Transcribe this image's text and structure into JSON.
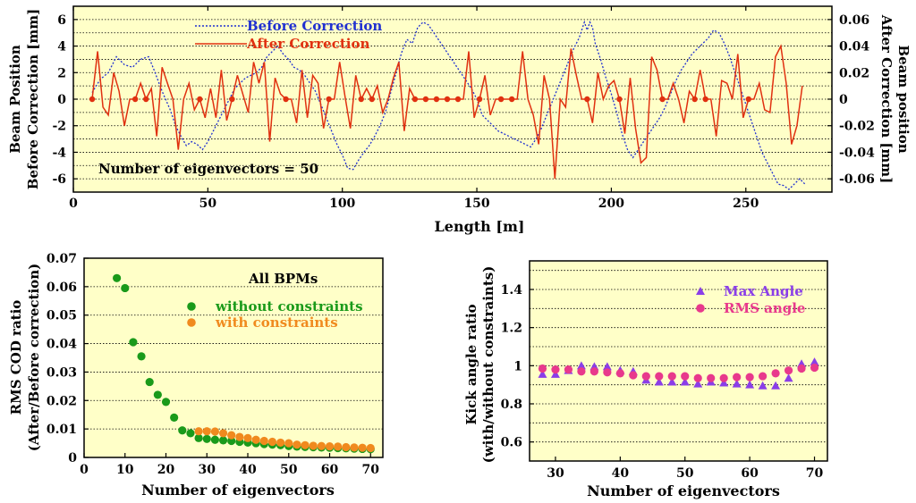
{
  "chart_data": [
    {
      "type": "line",
      "xlabel": "Length [m]",
      "ylabel_left": [
        "Beam Position",
        "Before Correction [mm]"
      ],
      "ylabel_right": [
        "Beam position",
        "After Correction [mm]"
      ],
      "xlim": [
        0,
        282
      ],
      "ylim_left": [
        -7,
        7
      ],
      "ylim_right": [
        -0.07,
        0.07
      ],
      "x_ticks": [
        0,
        50,
        100,
        150,
        200,
        250
      ],
      "y_left_ticks": [
        6,
        4,
        2,
        0,
        -2,
        -4,
        -6
      ],
      "y_right_ticks": [
        0.06,
        0.04,
        0.02,
        0,
        -0.02,
        -0.04,
        -0.06
      ],
      "y_right_tick_labels": [
        "0.06",
        "0.04",
        "0.02",
        "0",
        "-0.02",
        "-0.04",
        "-0.06"
      ],
      "grid": "horizontal dotted",
      "legend_placement": "top-left",
      "annotation": "Number of eigenvectors = 50",
      "series": [
        {
          "name": "Before Correction",
          "axis": "left",
          "style": "dashed",
          "color": "#2030d0",
          "x": [
            7,
            10,
            13,
            16,
            19,
            22,
            25,
            28,
            30,
            33,
            36,
            38,
            40,
            42,
            44,
            46,
            48,
            50,
            52,
            55,
            58,
            60,
            62,
            64,
            66,
            68,
            70,
            72,
            74,
            76,
            78,
            80,
            82,
            84,
            86,
            88,
            90,
            92,
            94,
            96,
            98,
            100,
            102,
            104,
            106,
            108,
            110,
            112,
            114,
            116,
            118,
            120,
            122,
            124,
            126,
            128,
            130,
            132,
            134,
            136,
            138,
            140,
            142,
            144,
            146,
            148,
            150,
            152,
            154,
            156,
            158,
            160,
            162,
            164,
            166,
            168,
            170,
            172,
            174,
            176,
            178,
            180,
            182,
            184,
            186,
            188,
            190,
            191,
            192,
            193,
            194,
            196,
            198,
            200,
            202,
            204,
            206,
            208,
            210,
            212,
            214,
            216,
            218,
            220,
            222,
            224,
            226,
            228,
            230,
            232,
            234,
            236,
            238,
            240,
            242,
            244,
            246,
            248,
            250,
            252,
            254,
            256,
            258,
            260,
            262,
            264,
            266,
            268,
            270,
            272
          ],
          "values": [
            0.5,
            1.5,
            2.0,
            3.2,
            2.6,
            2.4,
            3.0,
            3.2,
            2.2,
            0.6,
            -0.8,
            -2.0,
            -2.8,
            -3.5,
            -3.2,
            -3.4,
            -3.8,
            -3.2,
            -2.4,
            -1.2,
            0.0,
            0.8,
            1.2,
            1.6,
            1.8,
            2.0,
            2.4,
            3.2,
            3.6,
            4.0,
            3.4,
            3.0,
            2.4,
            2.2,
            1.8,
            1.2,
            0.6,
            -0.4,
            -1.4,
            -2.4,
            -3.4,
            -4.2,
            -5.2,
            -5.3,
            -4.6,
            -4.0,
            -3.5,
            -2.8,
            -2.0,
            -1.0,
            0.5,
            2.0,
            3.5,
            4.5,
            4.2,
            5.4,
            5.8,
            5.6,
            5.0,
            4.4,
            3.8,
            3.2,
            2.6,
            2.0,
            1.4,
            0.8,
            0.0,
            -1.2,
            -1.6,
            -2.0,
            -2.4,
            -2.6,
            -2.8,
            -3.0,
            -3.2,
            -3.4,
            -3.6,
            -3.0,
            -2.2,
            -1.2,
            -0.2,
            0.8,
            1.8,
            2.8,
            3.8,
            4.6,
            5.8,
            5.2,
            5.8,
            5.4,
            4.2,
            3.0,
            1.6,
            0.4,
            -1.0,
            -2.6,
            -3.8,
            -4.4,
            -3.8,
            -3.2,
            -2.6,
            -2.0,
            -1.4,
            -0.6,
            0.4,
            1.4,
            2.2,
            2.8,
            3.4,
            3.8,
            4.2,
            4.6,
            5.2,
            5.0,
            4.2,
            3.2,
            2.0,
            0.8,
            -0.4,
            -1.6,
            -2.8,
            -4.0,
            -4.8,
            -5.6,
            -6.4,
            -6.5,
            -6.8,
            -6.4,
            -6.0,
            -6.4
          ]
        },
        {
          "name": "After Correction",
          "axis": "right",
          "style": "solid",
          "color": "#e03010",
          "x": [
            7,
            9,
            11,
            13,
            15,
            17,
            19,
            21,
            23,
            25,
            27,
            29,
            31,
            33,
            35,
            37,
            39,
            41,
            43,
            45,
            47,
            49,
            51,
            53,
            55,
            57,
            59,
            61,
            63,
            65,
            67,
            69,
            71,
            73,
            75,
            77,
            79,
            81,
            83,
            85,
            87,
            89,
            91,
            93,
            95,
            97,
            99,
            101,
            103,
            105,
            107,
            109,
            111,
            113,
            115,
            117,
            119,
            121,
            123,
            125,
            127,
            129,
            131,
            133,
            135,
            137,
            139,
            141,
            143,
            145,
            147,
            149,
            151,
            153,
            155,
            157,
            159,
            161,
            163,
            165,
            167,
            169,
            171,
            173,
            175,
            177,
            179,
            181,
            183,
            185,
            187,
            189,
            191,
            193,
            195,
            197,
            199,
            201,
            203,
            205,
            207,
            209,
            211,
            213,
            215,
            217,
            219,
            221,
            223,
            225,
            227,
            229,
            231,
            233,
            235,
            237,
            239,
            241,
            243,
            245,
            247,
            249,
            251,
            253,
            255,
            257,
            259,
            261,
            263,
            265,
            267,
            269,
            271
          ],
          "values": [
            0,
            0.036,
            -0.006,
            -0.012,
            0.02,
            0.006,
            -0.02,
            0,
            0,
            0.012,
            0,
            0.008,
            -0.028,
            0.024,
            0.012,
            0,
            -0.038,
            0,
            0.012,
            -0.008,
            0,
            -0.014,
            0.008,
            -0.014,
            0.022,
            -0.016,
            0,
            0.018,
            0.004,
            -0.01,
            0.028,
            0.012,
            0.028,
            -0.032,
            0.016,
            0.004,
            0,
            0,
            -0.018,
            0.022,
            -0.014,
            0.018,
            0.012,
            -0.022,
            0,
            0,
            0.028,
            0.002,
            -0.022,
            0.018,
            0,
            0.008,
            0,
            0.01,
            -0.01,
            0,
            0.016,
            0.028,
            -0.024,
            0.008,
            0,
            0,
            0,
            0,
            0,
            0,
            0,
            0,
            0,
            0,
            0.036,
            -0.014,
            0,
            0.018,
            -0.012,
            0,
            0,
            0,
            0,
            0,
            0.036,
            0,
            -0.012,
            -0.034,
            0.018,
            0,
            -0.06,
            0,
            -0.006,
            0.038,
            0.018,
            0,
            0,
            -0.018,
            0.02,
            0,
            0.01,
            0.014,
            0,
            -0.026,
            0.016,
            -0.022,
            -0.048,
            -0.044,
            0.032,
            0.022,
            0,
            0,
            0.012,
            0,
            -0.018,
            0.006,
            0,
            0.022,
            0,
            0,
            -0.028,
            0.014,
            0.012,
            0,
            0.034,
            -0.014,
            0,
            0,
            0.012,
            -0.008,
            -0.01,
            0.032,
            0.04,
            0.012,
            -0.034,
            -0.02,
            0.01
          ]
        }
      ]
    },
    {
      "type": "scatter",
      "title": "All BPMs",
      "xlabel": "Number of eigenvectors",
      "ylabel": [
        "RMS COD ratio",
        "(After/Before correction)"
      ],
      "xlim": [
        0,
        73
      ],
      "ylim": [
        0,
        0.07
      ],
      "x_ticks": [
        0,
        10,
        20,
        30,
        40,
        50,
        60,
        70
      ],
      "y_ticks": [
        0,
        0.01,
        0.02,
        0.03,
        0.04,
        0.05,
        0.06,
        0.07
      ],
      "y_tick_labels": [
        "0",
        "0.01",
        "0.02",
        "0.03",
        "0.04",
        "0.05",
        "0.06",
        "0.07"
      ],
      "grid": "horizontal dotted",
      "legend_placement": "top-right",
      "series": [
        {
          "name": "without constraints",
          "color": "#1a9a1a",
          "x": [
            8,
            10,
            12,
            14,
            16,
            18,
            20,
            22,
            24,
            26,
            28,
            30,
            32,
            34,
            36,
            38,
            40,
            42,
            44,
            46,
            48,
            50,
            52,
            54,
            56,
            58,
            60,
            62,
            64,
            66,
            68,
            70
          ],
          "values": [
            0.063,
            0.0595,
            0.0405,
            0.0355,
            0.0265,
            0.022,
            0.0195,
            0.014,
            0.0095,
            0.0085,
            0.0068,
            0.0065,
            0.0062,
            0.006,
            0.0058,
            0.0055,
            0.0052,
            0.005,
            0.0047,
            0.0045,
            0.0043,
            0.004,
            0.0038,
            0.0037,
            0.0036,
            0.0035,
            0.0034,
            0.0033,
            0.0032,
            0.0031,
            0.003,
            0.0029
          ]
        },
        {
          "name": "with constraints",
          "color": "#f08a1e",
          "x": [
            28,
            30,
            32,
            34,
            36,
            38,
            40,
            42,
            44,
            46,
            48,
            50,
            52,
            54,
            56,
            58,
            60,
            62,
            64,
            66,
            68,
            70
          ],
          "values": [
            0.0092,
            0.0092,
            0.0091,
            0.0085,
            0.0078,
            0.0072,
            0.0068,
            0.0062,
            0.0058,
            0.0055,
            0.0052,
            0.005,
            0.0045,
            0.0043,
            0.0041,
            0.004,
            0.0039,
            0.0038,
            0.0036,
            0.0035,
            0.0034,
            0.0033
          ]
        }
      ]
    },
    {
      "type": "scatter",
      "xlabel": "Number of eigenvectors",
      "ylabel": [
        "Kick angle ratio",
        "(with/without constraints)"
      ],
      "xlim": [
        26,
        72
      ],
      "ylim": [
        0.5,
        1.55
      ],
      "x_ticks": [
        30,
        40,
        50,
        60,
        70
      ],
      "y_ticks": [
        0.6,
        0.8,
        1,
        1.2,
        1.4
      ],
      "y_tick_labels": [
        "0.6",
        "0.8",
        "1",
        "1.2",
        "1.4"
      ],
      "grid": "horizontal dotted",
      "legend_placement": "top-center",
      "series": [
        {
          "name": "Max Angle",
          "marker": "triangle",
          "color": "#8a3ee8",
          "x": [
            28,
            30,
            32,
            34,
            36,
            38,
            40,
            42,
            44,
            46,
            48,
            50,
            52,
            54,
            56,
            58,
            60,
            62,
            64,
            66,
            68,
            70
          ],
          "values": [
            0.955,
            0.955,
            0.975,
            1.0,
            0.995,
            0.995,
            0.975,
            0.97,
            0.925,
            0.915,
            0.915,
            0.915,
            0.905,
            0.915,
            0.91,
            0.905,
            0.9,
            0.895,
            0.895,
            0.935,
            1.01,
            1.02
          ]
        },
        {
          "name": "RMS angle",
          "marker": "circle",
          "color": "#e8398c",
          "x": [
            28,
            30,
            32,
            34,
            36,
            38,
            40,
            42,
            44,
            46,
            48,
            50,
            52,
            54,
            56,
            58,
            60,
            62,
            64,
            66,
            68,
            70
          ],
          "values": [
            0.985,
            0.98,
            0.98,
            0.97,
            0.97,
            0.965,
            0.96,
            0.95,
            0.945,
            0.945,
            0.945,
            0.945,
            0.935,
            0.935,
            0.935,
            0.94,
            0.94,
            0.945,
            0.96,
            0.975,
            0.985,
            0.99
          ]
        }
      ]
    }
  ]
}
